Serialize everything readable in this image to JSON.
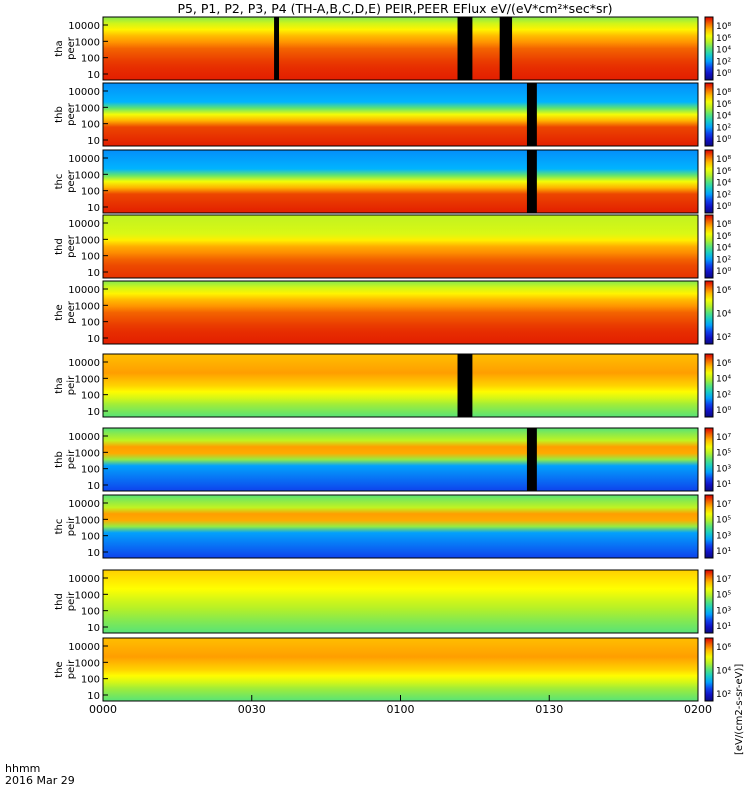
{
  "title": "P5, P1, P2, P3, P4 (TH-A,B,C,D,E) PEIR,PEER EFlux eV/(eV*cm²*sec*sr)",
  "x_label_top": "hhmm",
  "x_label_date": "2016 Mar 29",
  "colorbar_units": "[eV/(cm2-s-sr-eV)]",
  "colors": {
    "background": "#ffffff",
    "spectrum_low": "#1010b0",
    "spectrum_mid": "#20d0a0",
    "spectrum_high": "#e00000",
    "flag_red": "#e00000",
    "flag_yellow": "#ffff00",
    "gap": "#000000"
  },
  "chart_data": {
    "type": "heatmap",
    "x_axis": {
      "label": "hhmm",
      "range": [
        "0000",
        "0200"
      ],
      "ticks": [
        "0000",
        "0030",
        "0100",
        "0130",
        "0200"
      ]
    },
    "panels": [
      {
        "probe": "tha",
        "species": "peer",
        "y_ticks": [
          "10000",
          "1000",
          "100",
          "10"
        ],
        "cbar_ticks": [
          "10⁸",
          "10⁶",
          "10⁴",
          "10²",
          "10⁰"
        ],
        "profile": "electron_hot",
        "gaps": [
          [
            34.5,
            35.5
          ],
          [
            71.5,
            74.5
          ],
          [
            80,
            82.5
          ]
        ]
      },
      {
        "probe": "thb",
        "species": "peer",
        "y_ticks": [
          "10000",
          "1000",
          "100",
          "10"
        ],
        "cbar_ticks": [
          "10⁸",
          "10⁶",
          "10⁴",
          "10²",
          "10⁰"
        ],
        "profile": "electron_dense",
        "gaps": [
          [
            85.5,
            87.5
          ]
        ]
      },
      {
        "probe": "thc",
        "species": "peer",
        "y_ticks": [
          "10000",
          "1000",
          "100",
          "10"
        ],
        "cbar_ticks": [
          "10⁸",
          "10⁶",
          "10⁴",
          "10²",
          "10⁰"
        ],
        "profile": "electron_dense",
        "gaps": [
          [
            85.5,
            87.5
          ]
        ]
      },
      {
        "probe": "thd",
        "species": "peer",
        "y_ticks": [
          "10000",
          "1000",
          "100",
          "10"
        ],
        "cbar_ticks": [
          "10⁸",
          "10⁶",
          "10⁴",
          "10²",
          "10⁰"
        ],
        "profile": "electron_mid",
        "gaps": []
      },
      {
        "probe": "the",
        "species": "peer",
        "y_ticks": [
          "10000",
          "1000",
          "100",
          "10"
        ],
        "cbar_ticks": [
          "10⁶",
          "10⁴",
          "10²"
        ],
        "profile": "electron_hot",
        "gaps": []
      },
      {
        "probe": "tha",
        "species": "peir",
        "y_ticks": [
          "10000",
          "1000",
          "100",
          "10"
        ],
        "cbar_ticks": [
          "10⁶",
          "10⁴",
          "10²",
          "10⁰"
        ],
        "profile": "ion_warm",
        "gaps": [
          [
            71.5,
            74.5
          ]
        ]
      },
      {
        "probe": "thb",
        "species": "peir",
        "y_ticks": [
          "10000",
          "1000",
          "100",
          "10"
        ],
        "cbar_ticks": [
          "10⁷",
          "10⁵",
          "10³",
          "10¹"
        ],
        "profile": "ion_band",
        "gaps": [
          [
            85.5,
            87.5
          ]
        ]
      },
      {
        "probe": "thc",
        "species": "peir",
        "y_ticks": [
          "10000",
          "1000",
          "100",
          "10"
        ],
        "cbar_ticks": [
          "10⁷",
          "10⁵",
          "10³",
          "10¹"
        ],
        "profile": "ion_band",
        "gaps": []
      },
      {
        "probe": "thd",
        "species": "peir",
        "y_ticks": [
          "10000",
          "1000",
          "100",
          "10"
        ],
        "cbar_ticks": [
          "10⁷",
          "10⁵",
          "10³",
          "10¹"
        ],
        "profile": "ion_cool",
        "gaps": []
      },
      {
        "probe": "the",
        "species": "peir",
        "y_ticks": [
          "10000",
          "1000",
          "100",
          "10"
        ],
        "cbar_ticks": [
          "10⁶",
          "10⁴",
          "10²"
        ],
        "profile": "ion_warm",
        "gaps": []
      }
    ],
    "grid": false,
    "legend": "colorbar-right"
  }
}
